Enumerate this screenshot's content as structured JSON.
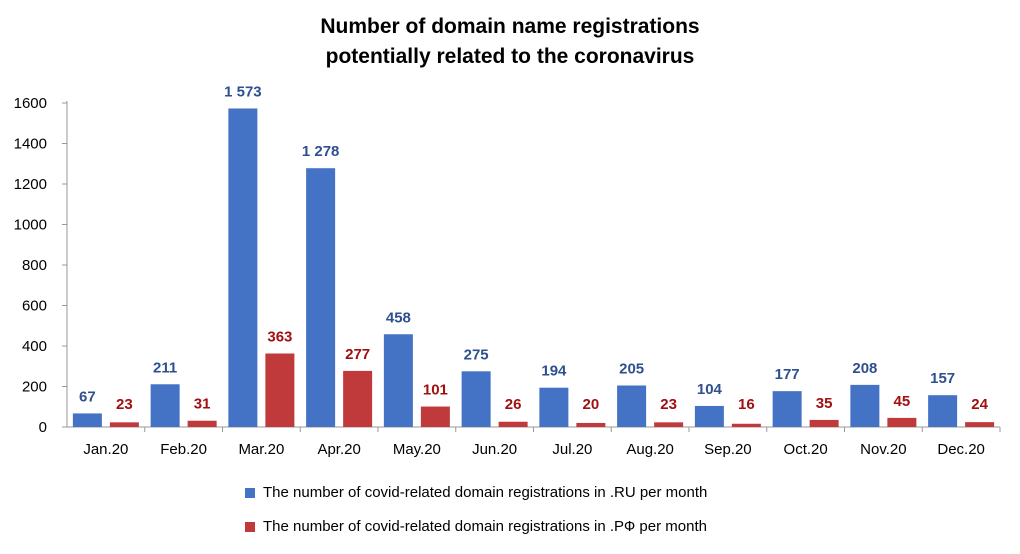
{
  "chart_data": {
    "type": "bar",
    "title_line1": "Number of domain name registrations",
    "title_line2": "potentially related to the coronavirus",
    "categories": [
      "Jan.20",
      "Feb.20",
      "Mar.20",
      "Apr.20",
      "May.20",
      "Jun.20",
      "Jul.20",
      "Aug.20",
      "Sep.20",
      "Oct.20",
      "Nov.20",
      "Dec.20"
    ],
    "series": [
      {
        "name": "The number of covid-related domain registrations in .RU per month",
        "color": "#4472C4",
        "values": [
          67,
          211,
          1573,
          1278,
          458,
          275,
          194,
          205,
          104,
          177,
          208,
          157
        ],
        "labels": [
          "67",
          "211",
          "1 573",
          "1 278",
          "458",
          "275",
          "194",
          "205",
          "104",
          "177",
          "208",
          "157"
        ]
      },
      {
        "name": "The number of covid-related domain registrations in .РФ per month",
        "color": "#C0393B",
        "values": [
          23,
          31,
          363,
          277,
          101,
          26,
          20,
          23,
          16,
          35,
          45,
          24
        ],
        "labels": [
          "23",
          "31",
          "363",
          "277",
          "101",
          "26",
          "20",
          "23",
          "16",
          "35",
          "45",
          "24"
        ]
      }
    ],
    "ylim": [
      0,
      1600
    ],
    "yticks": [
      "0",
      "200",
      "400",
      "600",
      "800",
      "1000",
      "1200",
      "1400",
      "1600"
    ],
    "grid": false,
    "legend_position": "bottom"
  },
  "colors": {
    "ru_label": "#2F4F8F",
    "rf_label": "#A01010",
    "axis": "#999999"
  }
}
